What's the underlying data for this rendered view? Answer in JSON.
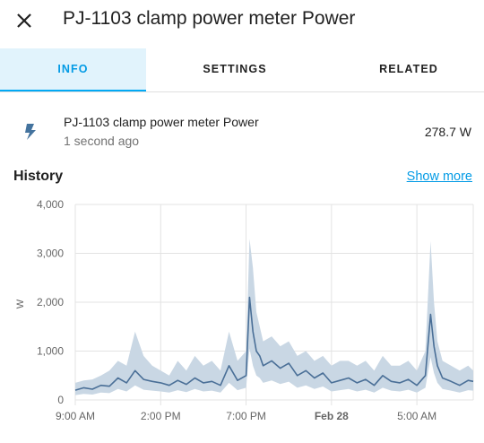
{
  "dialog": {
    "title": "PJ-1103 clamp power meter Power"
  },
  "tabs": [
    {
      "label": "INFO",
      "active": true
    },
    {
      "label": "SETTINGS",
      "active": false
    },
    {
      "label": "RELATED",
      "active": false
    }
  ],
  "entity": {
    "name": "PJ-1103 clamp power meter Power",
    "last_changed": "1 second ago",
    "state": "278.7 W",
    "icon": "flash-icon"
  },
  "history": {
    "title": "History",
    "show_more": "Show more"
  },
  "colors": {
    "accent": "#03a9f4",
    "line": "#4a6f97",
    "band": "#c9d7e4"
  },
  "chart_data": {
    "type": "line",
    "xlabel": "",
    "ylabel": "W",
    "ylim": [
      0,
      4000
    ],
    "y_ticks": [
      "4,000",
      "3,000",
      "2,000",
      "1,000",
      "0"
    ],
    "y_tick_values": [
      4000,
      3000,
      2000,
      1000,
      0
    ],
    "x_ticks": [
      "9:00 AM",
      "2:00 PM",
      "7:00 PM",
      "Feb 28",
      "5:00 AM"
    ],
    "x_tick_hours": [
      0,
      5,
      10,
      15,
      20
    ],
    "xlim_hours": [
      0,
      23.3
    ],
    "grid": true,
    "series": [
      {
        "hours": [
          0,
          0.5,
          1,
          1.5,
          2,
          2.5,
          3,
          3.5,
          4,
          4.5,
          5,
          5.5,
          6,
          6.5,
          7,
          7.5,
          8,
          8.5,
          9,
          9.5,
          10,
          10.2,
          10.4,
          10.6,
          10.8,
          11,
          11.5,
          12,
          12.5,
          13,
          13.5,
          14,
          14.5,
          15,
          15.5,
          16,
          16.5,
          17,
          17.5,
          18,
          18.5,
          19,
          19.5,
          20,
          20.5,
          20.8,
          21,
          21.2,
          21.5,
          22,
          22.5,
          23,
          23.3
        ],
        "values": [
          200,
          250,
          220,
          300,
          280,
          450,
          350,
          600,
          420,
          380,
          350,
          300,
          400,
          320,
          450,
          350,
          380,
          300,
          700,
          400,
          500,
          2100,
          1400,
          1000,
          900,
          700,
          800,
          650,
          750,
          500,
          600,
          450,
          550,
          350,
          400,
          450,
          350,
          420,
          300,
          500,
          380,
          350,
          420,
          300,
          500,
          1750,
          1100,
          700,
          450,
          380,
          300,
          400,
          380
        ]
      }
    ],
    "band_max": {
      "hours": [
        0,
        0.5,
        1,
        1.5,
        2,
        2.5,
        3,
        3.5,
        4,
        4.5,
        5,
        5.5,
        6,
        6.5,
        7,
        7.5,
        8,
        8.5,
        9,
        9.5,
        10,
        10.2,
        10.4,
        10.6,
        10.8,
        11,
        11.5,
        12,
        12.5,
        13,
        13.5,
        14,
        14.5,
        15,
        15.5,
        16,
        16.5,
        17,
        17.5,
        18,
        18.5,
        19,
        19.5,
        20,
        20.5,
        20.8,
        21,
        21.2,
        21.5,
        22,
        22.5,
        23,
        23.3
      ],
      "values": [
        350,
        400,
        420,
        500,
        600,
        800,
        700,
        1400,
        900,
        700,
        600,
        500,
        800,
        600,
        900,
        700,
        800,
        600,
        1400,
        800,
        1000,
        3300,
        2700,
        1800,
        1500,
        1200,
        1300,
        1100,
        1200,
        900,
        1000,
        800,
        900,
        700,
        800,
        800,
        700,
        800,
        600,
        900,
        700,
        700,
        800,
        600,
        1000,
        3250,
        2000,
        1200,
        800,
        700,
        600,
        700,
        600
      ]
    }
  }
}
